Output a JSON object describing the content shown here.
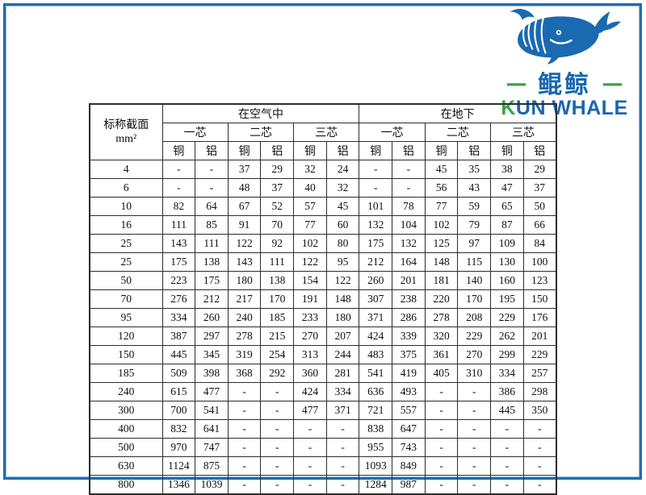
{
  "page": {
    "border_color": "#1e6cb4",
    "background": "#ffffff"
  },
  "logo": {
    "whale_icon": "whale-icon",
    "dash_left": "—",
    "dash_right": "—",
    "name_cn": "鲲鲸",
    "name_en_initial": "K",
    "name_en_rest": "UN WHALE",
    "colors": {
      "blue": "#1a67ae",
      "green": "#3aa348",
      "whale_blue": "#1a6ab1"
    }
  },
  "table": {
    "corner_header_line1": "标称截面",
    "corner_header_line2": "mm²",
    "group_headers": [
      "在空气中",
      "在地下"
    ],
    "core_headers": [
      "一芯",
      "二芯",
      "三芯",
      "一芯",
      "二芯",
      "三芯"
    ],
    "material_headers": [
      "铜",
      "铝",
      "铜",
      "铝",
      "铜",
      "铝",
      "铜",
      "铝",
      "铜",
      "铝",
      "铜",
      "铝"
    ],
    "rows": [
      {
        "section": "4",
        "values": [
          "-",
          "-",
          "37",
          "29",
          "32",
          "24",
          "-",
          "-",
          "45",
          "35",
          "38",
          "29"
        ]
      },
      {
        "section": "6",
        "values": [
          "-",
          "-",
          "48",
          "37",
          "40",
          "32",
          "-",
          "-",
          "56",
          "43",
          "47",
          "37"
        ]
      },
      {
        "section": "10",
        "values": [
          "82",
          "64",
          "67",
          "52",
          "57",
          "45",
          "101",
          "78",
          "77",
          "59",
          "65",
          "50"
        ]
      },
      {
        "section": "16",
        "values": [
          "111",
          "85",
          "91",
          "70",
          "77",
          "60",
          "132",
          "104",
          "102",
          "79",
          "87",
          "66"
        ]
      },
      {
        "section": "25",
        "values": [
          "143",
          "111",
          "122",
          "92",
          "102",
          "80",
          "175",
          "132",
          "125",
          "97",
          "109",
          "84"
        ]
      },
      {
        "section": "25",
        "values": [
          "175",
          "138",
          "143",
          "111",
          "122",
          "95",
          "212",
          "164",
          "148",
          "115",
          "130",
          "100"
        ]
      },
      {
        "section": "50",
        "values": [
          "223",
          "175",
          "180",
          "138",
          "154",
          "122",
          "260",
          "201",
          "181",
          "140",
          "160",
          "123"
        ]
      },
      {
        "section": "70",
        "values": [
          "276",
          "212",
          "217",
          "170",
          "191",
          "148",
          "307",
          "238",
          "220",
          "170",
          "195",
          "150"
        ]
      },
      {
        "section": "95",
        "values": [
          "334",
          "260",
          "240",
          "185",
          "233",
          "180",
          "371",
          "286",
          "278",
          "208",
          "229",
          "176"
        ]
      },
      {
        "section": "120",
        "values": [
          "387",
          "297",
          "278",
          "215",
          "270",
          "207",
          "424",
          "339",
          "320",
          "229",
          "262",
          "201"
        ]
      },
      {
        "section": "150",
        "values": [
          "445",
          "345",
          "319",
          "254",
          "313",
          "244",
          "483",
          "375",
          "361",
          "270",
          "299",
          "229"
        ]
      },
      {
        "section": "185",
        "values": [
          "509",
          "398",
          "368",
          "292",
          "360",
          "281",
          "541",
          "419",
          "405",
          "310",
          "334",
          "257"
        ]
      },
      {
        "section": "240",
        "values": [
          "615",
          "477",
          "-",
          "-",
          "424",
          "334",
          "636",
          "493",
          "-",
          "-",
          "386",
          "298"
        ]
      },
      {
        "section": "300",
        "values": [
          "700",
          "541",
          "-",
          "-",
          "477",
          "371",
          "721",
          "557",
          "-",
          "-",
          "445",
          "350"
        ]
      },
      {
        "section": "400",
        "values": [
          "832",
          "641",
          "-",
          "-",
          "-",
          "-",
          "838",
          "647",
          "-",
          "-",
          "-",
          "-"
        ]
      },
      {
        "section": "500",
        "values": [
          "970",
          "747",
          "-",
          "-",
          "-",
          "-",
          "955",
          "743",
          "-",
          "-",
          "-",
          "-"
        ]
      },
      {
        "section": "630",
        "values": [
          "1124",
          "875",
          "-",
          "-",
          "-",
          "-",
          "1093",
          "849",
          "-",
          "-",
          "-",
          "-"
        ]
      },
      {
        "section": "800",
        "values": [
          "1346",
          "1039",
          "-",
          "-",
          "-",
          "-",
          "1284",
          "987",
          "-",
          "-",
          "-",
          "-"
        ]
      }
    ]
  }
}
